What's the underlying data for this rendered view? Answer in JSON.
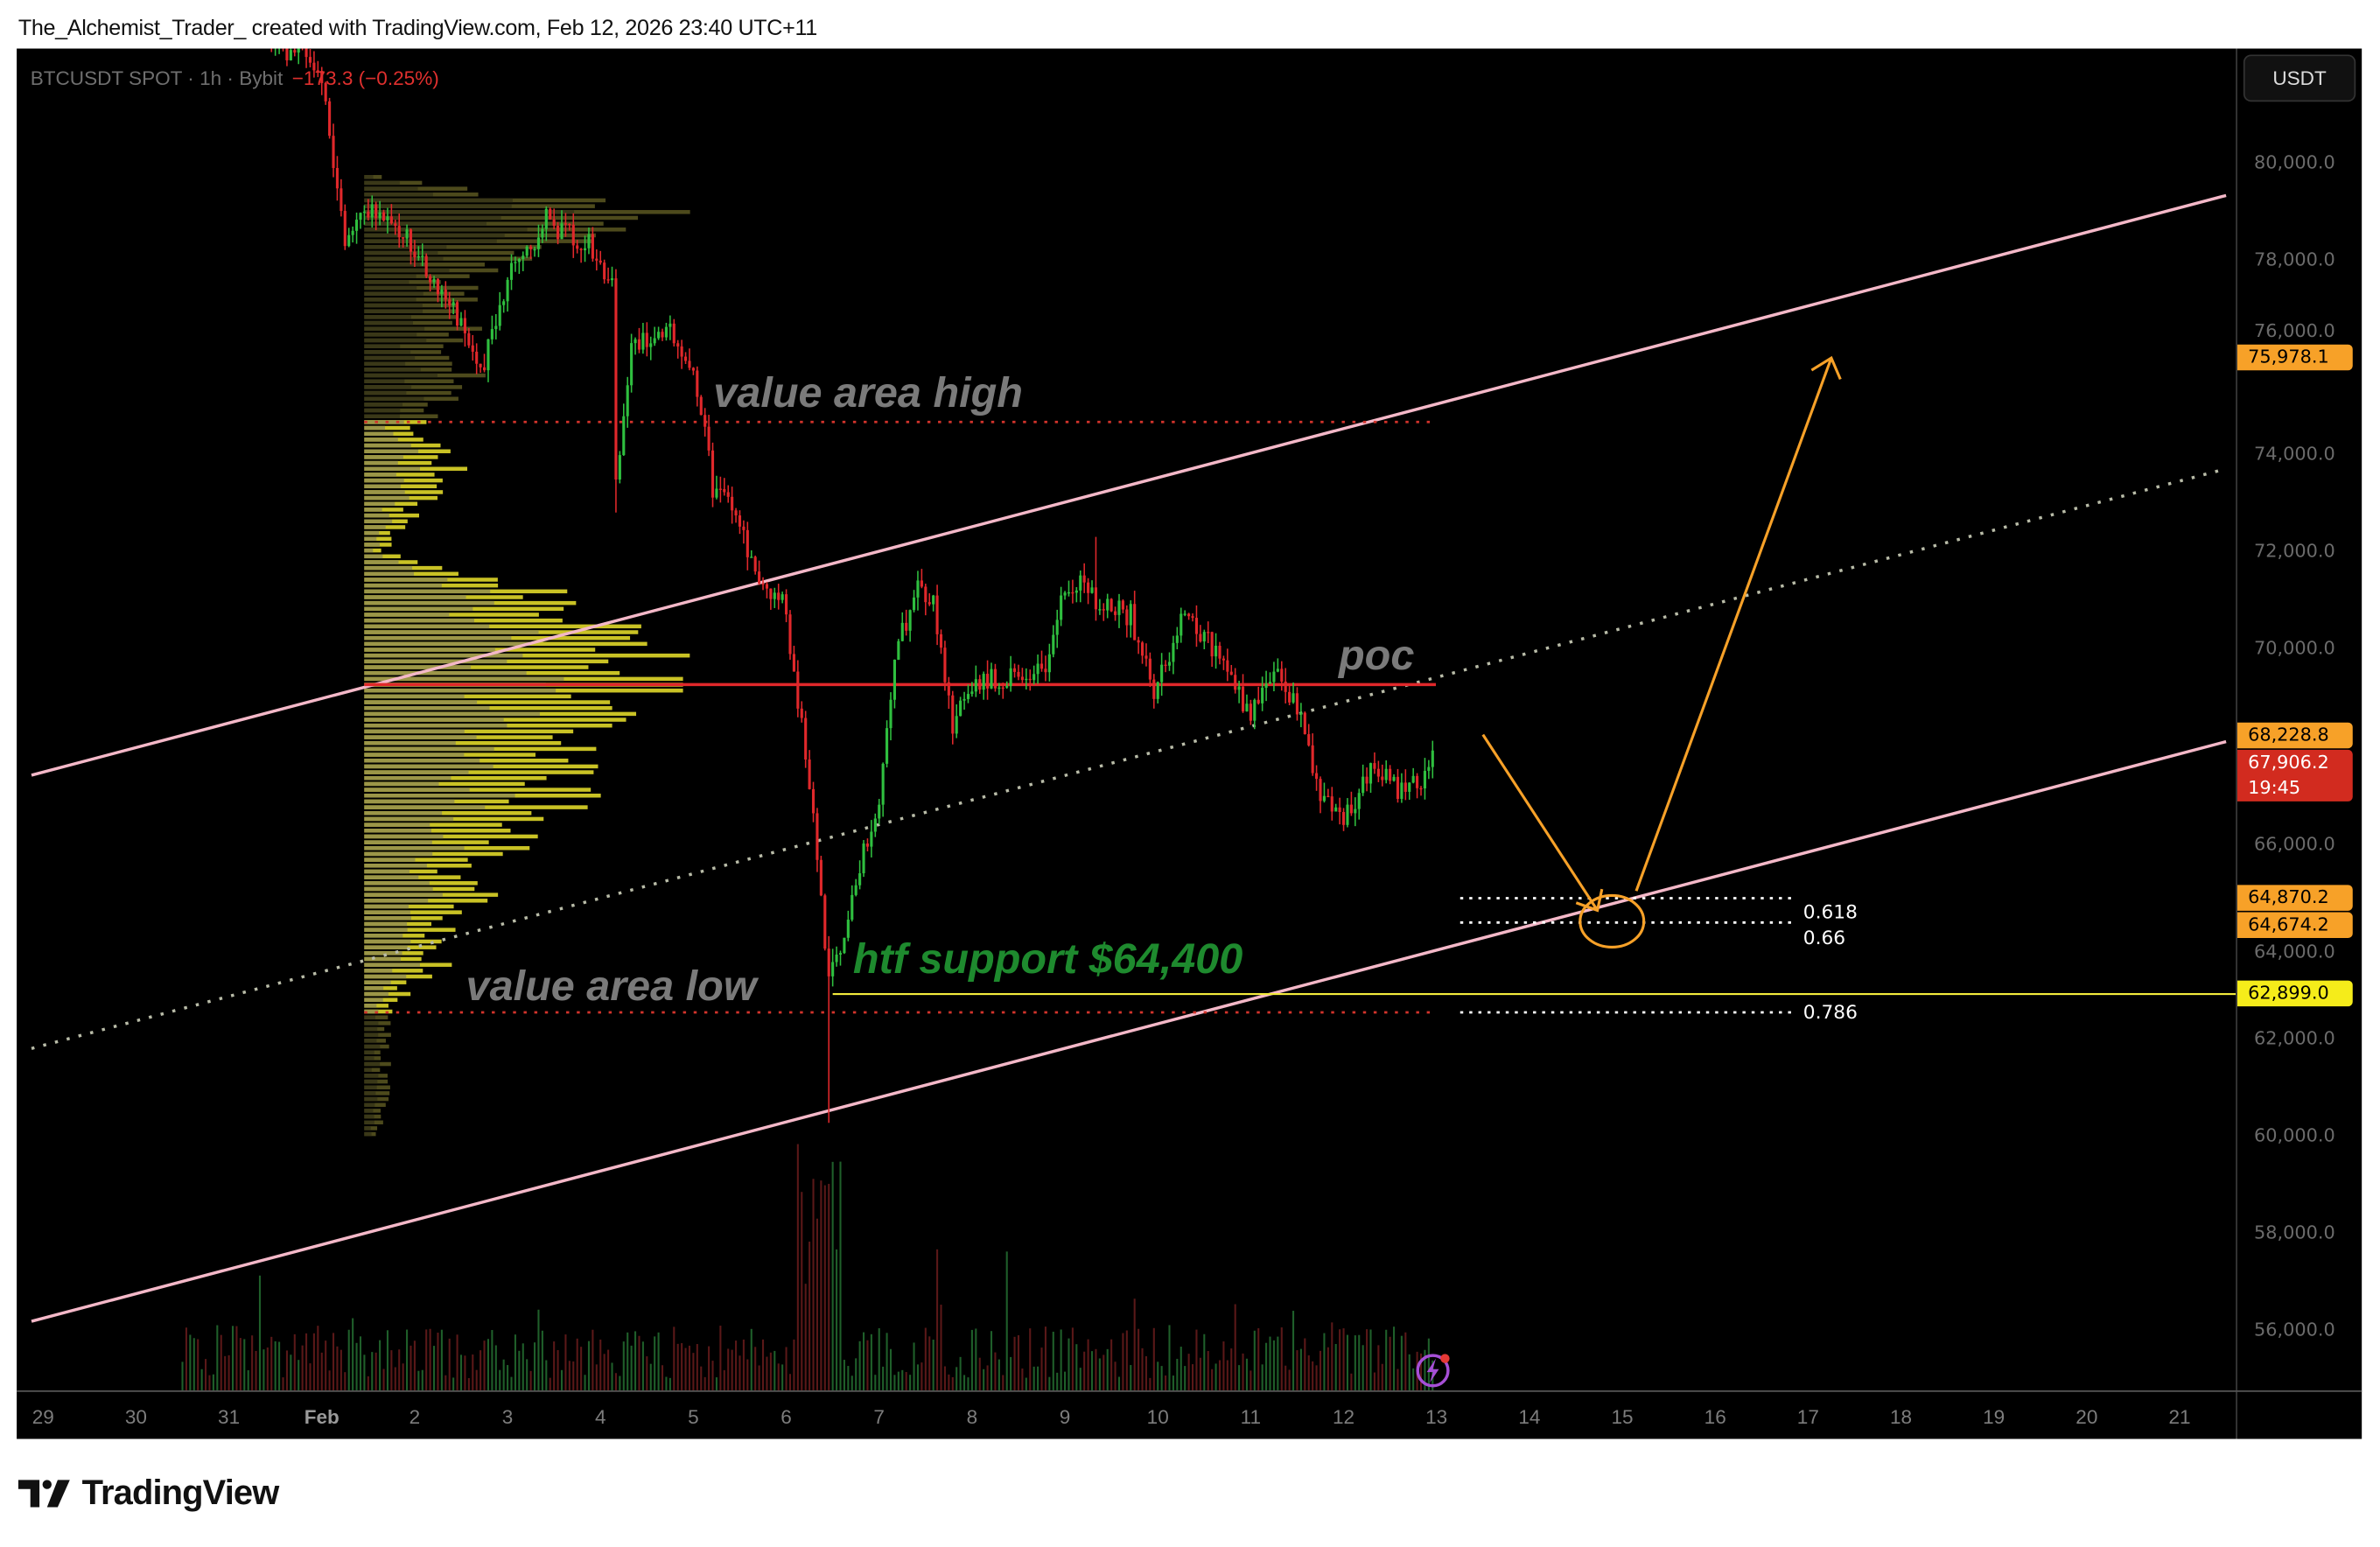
{
  "header": {
    "attribution": "The_Alchemist_Trader_ created with TradingView.com, Feb 12, 2026 23:40 UTC+11"
  },
  "legend": {
    "symbol": "BTCUSDT SPOT · 1h · Bybit",
    "change": "−173.3 (−0.25%)"
  },
  "currency_button": "USDT",
  "footer": {
    "logo_text": "TradingView"
  },
  "colors": {
    "up": "#2fbf3f",
    "down": "#e0282b",
    "channel": "#f4b8c8",
    "poc": "#e0282b",
    "arrow": "#f7a128",
    "support_line": "#f2ea3c",
    "annotation_gray": "#7a7a7a",
    "annotation_green": "#1e8a2e"
  },
  "icons": {
    "alert": "lightning-icon"
  },
  "chart_data": {
    "type": "candlestick",
    "interval": "1h",
    "ylim": [
      55000,
      82500
    ],
    "y_ticks": [
      "80,000.0",
      "78,000.0",
      "76,000.0",
      "74,000.0",
      "72,000.0",
      "70,000.0",
      "68,000.0",
      "66,000.0",
      "64,000.0",
      "62,000.0",
      "60,000.0",
      "58,000.0",
      "56,000.0"
    ],
    "y_tick_values": [
      80000,
      78000,
      76000,
      74000,
      72000,
      70000,
      68000,
      66000,
      64000,
      62000,
      60000,
      58000,
      56000
    ],
    "x_ticks": [
      "29",
      "30",
      "31",
      "Feb",
      "2",
      "3",
      "4",
      "5",
      "6",
      "7",
      "8",
      "9",
      "10",
      "11",
      "12",
      "13",
      "14",
      "15",
      "16",
      "17",
      "18",
      "19",
      "20",
      "21"
    ],
    "price_path": [
      [
        "Jan 30 12:00",
        83500
      ],
      [
        "Jan 31 23:00",
        82000
      ],
      [
        "Feb 1 04:00",
        79600
      ],
      [
        "Feb 1 06:00",
        78190
      ],
      [
        "Feb 1 11:00",
        78970
      ],
      [
        "Feb 1 21:00",
        78660
      ],
      [
        "Feb 2 10:00",
        76940
      ],
      [
        "Feb 2 17:00",
        75690
      ],
      [
        "Feb 3 00:00",
        77570
      ],
      [
        "Feb 3 10:00",
        78810
      ],
      [
        "Feb 3 23:00",
        78190
      ],
      [
        "Feb 4 03:00",
        77410
      ],
      [
        "Feb 4 04:00",
        73350
      ],
      [
        "Feb 4 08:00",
        76320
      ],
      [
        "Feb 4 19:00",
        76470
      ],
      [
        "Feb 5 00:00",
        75850
      ],
      [
        "Feb 5 05:00",
        73350
      ],
      [
        "Feb 5 11:00",
        72730
      ],
      [
        "Feb 5 17:00",
        71170
      ],
      [
        "Feb 5 23:00",
        71010
      ],
      [
        "Feb 6 03:00",
        68980
      ],
      [
        "Feb 6 07:00",
        66480
      ],
      [
        "Feb 6 11:00",
        63050
      ],
      [
        "Feb 6 16:00",
        64600
      ],
      [
        "Feb 6 20:00",
        65860
      ],
      [
        "Feb 7 00:00",
        66800
      ],
      [
        "Feb 7 04:00",
        69920
      ],
      [
        "Feb 7 10:00",
        71170
      ],
      [
        "Feb 7 14:00",
        71010
      ],
      [
        "Feb 7 19:00",
        68360
      ],
      [
        "Feb 8 00:00",
        69300
      ],
      [
        "Feb 8 10:00",
        69450
      ],
      [
        "Feb 8 18:00",
        69450
      ],
      [
        "Feb 8 23:00",
        71010
      ],
      [
        "Feb 9 04:00",
        71330
      ],
      [
        "Feb 9 10:00",
        70860
      ],
      [
        "Feb 9 17:00",
        70700
      ],
      [
        "Feb 9 23:00",
        68980
      ],
      [
        "Feb 10 06:00",
        70700
      ],
      [
        "Feb 10 13:00",
        70230
      ],
      [
        "Feb 10 19:00",
        69300
      ],
      [
        "Feb 11 00:00",
        68520
      ],
      [
        "Feb 11 06:00",
        69610
      ],
      [
        "Feb 11 12:00",
        68830
      ],
      [
        "Feb 11 18:00",
        66960
      ],
      [
        "Feb 12 00:00",
        66480
      ],
      [
        "Feb 12 04:00",
        67110
      ],
      [
        "Feb 12 08:00",
        67580
      ],
      [
        "Feb 12 14:00",
        67110
      ],
      [
        "Feb 12 20:00",
        67270
      ],
      [
        "Feb 12 23:00",
        67906.2
      ]
    ],
    "wick_extremes": [
      [
        "Feb 6 11:00",
        "low",
        60250
      ],
      [
        "Feb 4 04:00",
        "low",
        72800
      ],
      [
        "Feb 9 08:00",
        "high",
        72300
      ]
    ],
    "last_price": {
      "value": "67,906.2",
      "countdown": "19:45"
    },
    "price_labels": [
      {
        "price": 75978.1,
        "text": "75,978.1",
        "color": "#f7a128"
      },
      {
        "price": 68228.8,
        "text": "68,228.8",
        "color": "#f7a128"
      },
      {
        "price": 64870.2,
        "text": "64,870.2",
        "color": "#f7a128"
      },
      {
        "price": 64674.2,
        "text": "64,674.2",
        "color": "#f7a128"
      },
      {
        "price": 62899.0,
        "text": "62,899.0",
        "color": "#f5ec1a"
      }
    ],
    "volume_profile": {
      "poc": 69263,
      "value_area_high": 74663,
      "value_area_low": 62522,
      "levels": [
        79500,
        79000,
        78500,
        78000,
        77500,
        77000,
        76500,
        76000,
        75500,
        75000,
        74500,
        74000,
        73500,
        73000,
        72500,
        72000,
        71500,
        71000,
        70500,
        70000,
        69500,
        69250,
        69000,
        68500,
        68000,
        67500,
        67000,
        66500,
        66000,
        65500,
        65000,
        64500,
        64000,
        63500,
        63000,
        62500,
        62000,
        61500,
        61000,
        60500,
        60000
      ],
      "relative_volume": [
        0.29,
        0.9,
        0.71,
        0.48,
        0.33,
        0.29,
        0.36,
        0.29,
        0.33,
        0.24,
        0.14,
        0.24,
        0.29,
        0.17,
        0.12,
        0.07,
        0.29,
        0.71,
        0.83,
        0.9,
        0.76,
        1.0,
        0.81,
        0.69,
        0.81,
        0.67,
        0.71,
        0.48,
        0.52,
        0.29,
        0.38,
        0.31,
        0.24,
        0.24,
        0.14,
        0.07,
        0.07,
        0.07,
        0.07,
        0.07,
        0.05
      ]
    },
    "channel": {
      "upper": [
        [
          "Jan 28 21:00",
          67400
        ],
        [
          "Feb 21 12:00",
          79320
        ]
      ],
      "middle": [
        [
          "Jan 28 21:00",
          61780
        ],
        [
          "Feb 21 12:00",
          73700
        ]
      ],
      "lower": [
        [
          "Jan 28 21:00",
          56170
        ],
        [
          "Feb 21 12:00",
          68090
        ]
      ]
    },
    "fib_levels": [
      {
        "ratio": "0.618",
        "price": 64870.2
      },
      {
        "ratio": "0.66",
        "price": 64370
      },
      {
        "ratio": "0.786",
        "price": 62522
      }
    ],
    "support_line": {
      "price": 62899.0,
      "from": "Feb 6 12:00"
    },
    "annotations": {
      "vah": "value area high",
      "poc": "poc",
      "val": "value area low",
      "support": "htf support $64,400"
    },
    "projection": {
      "down_to": [
        "Feb 14 16:00",
        64870
      ],
      "up_to": [
        "Feb 17 06:00",
        75978.1
      ]
    }
  }
}
